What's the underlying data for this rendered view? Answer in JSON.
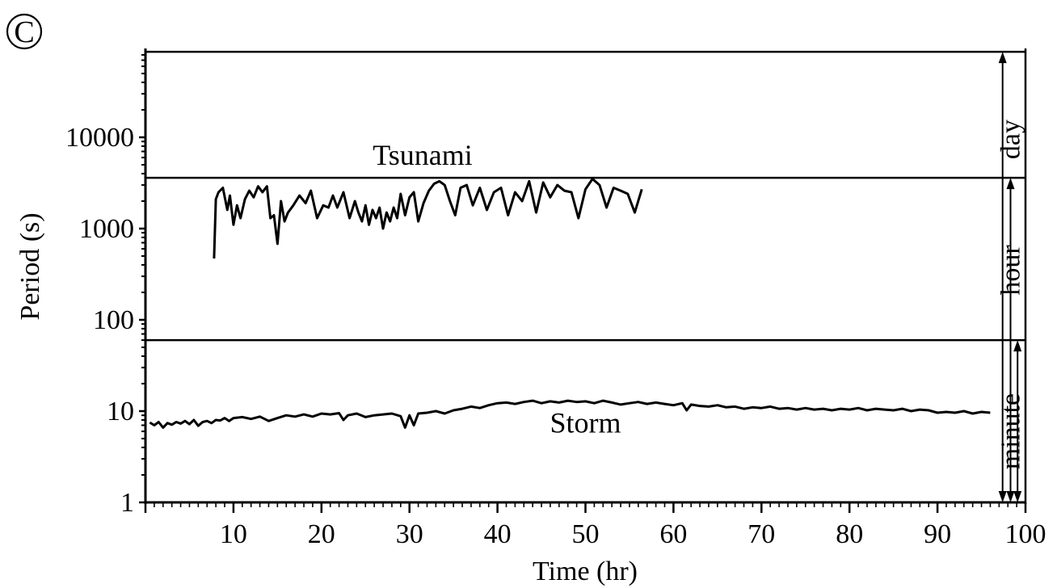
{
  "chart_data": {
    "type": "line",
    "panel_label": "C",
    "xlabel": "Time (hr)",
    "ylabel": "Period (s)",
    "xlim": [
      0,
      100
    ],
    "ylim": [
      1,
      86400
    ],
    "y_scale": "log",
    "x_tick_values": [
      10,
      20,
      30,
      40,
      50,
      60,
      70,
      80,
      90,
      100
    ],
    "x_tick_labels": [
      "10",
      "20",
      "30",
      "40",
      "50",
      "60",
      "70",
      "80",
      "90",
      "100"
    ],
    "y_tick_values": [
      1,
      10,
      100,
      1000,
      10000
    ],
    "y_tick_labels": [
      "1",
      "10",
      "100",
      "1000",
      "10000"
    ],
    "grid": false,
    "legend": "none",
    "series": [
      {
        "name": "Tsunami",
        "x": [
          7.8,
          8.0,
          8.3,
          8.8,
          9.3,
          9.6,
          10.0,
          10.4,
          10.8,
          11.3,
          11.8,
          12.3,
          12.8,
          13.3,
          13.8,
          14.2,
          14.6,
          15.0,
          15.4,
          15.8,
          16.2,
          16.8,
          17.5,
          18.2,
          18.8,
          19.5,
          20.2,
          20.8,
          21.3,
          21.8,
          22.5,
          23.2,
          23.8,
          24.2,
          24.6,
          25.0,
          25.4,
          25.8,
          26.2,
          26.6,
          27.0,
          27.4,
          27.8,
          28.2,
          28.6,
          29.0,
          29.5,
          30.0,
          30.5,
          31.0,
          31.6,
          32.2,
          32.8,
          33.4,
          34.0,
          34.6,
          35.2,
          35.8,
          36.5,
          37.2,
          38.0,
          38.8,
          39.6,
          40.4,
          41.2,
          42.0,
          42.8,
          43.6,
          44.4,
          45.2,
          46.0,
          46.8,
          47.6,
          48.4,
          49.2,
          50.0,
          50.8,
          51.6,
          52.4,
          53.2,
          54.0,
          54.8,
          55.6,
          56.4
        ],
        "y": [
          470,
          2100,
          2500,
          2800,
          1600,
          2300,
          1100,
          1800,
          1300,
          2100,
          2600,
          2200,
          2900,
          2500,
          2900,
          1300,
          1400,
          680,
          2000,
          1200,
          1500,
          1800,
          2300,
          1900,
          2600,
          1300,
          1800,
          1700,
          2300,
          1700,
          2500,
          1300,
          2000,
          1500,
          1200,
          1800,
          1100,
          1600,
          1300,
          1700,
          1000,
          1500,
          1200,
          1700,
          1300,
          2400,
          1400,
          2200,
          2500,
          1200,
          1900,
          2600,
          3100,
          3300,
          3000,
          2000,
          1400,
          2800,
          3000,
          1800,
          2800,
          1600,
          2500,
          2800,
          1400,
          2500,
          2000,
          3300,
          1500,
          3200,
          2200,
          3000,
          2600,
          2500,
          1300,
          2700,
          3500,
          3000,
          1700,
          2800,
          2600,
          2400,
          1500,
          2700
        ]
      },
      {
        "name": "Storm",
        "x": [
          0.5,
          1.0,
          1.5,
          2.0,
          2.5,
          3.0,
          3.5,
          4.0,
          4.5,
          5.0,
          5.5,
          6.0,
          6.5,
          7.0,
          7.5,
          8.0,
          8.5,
          9.0,
          9.5,
          10.0,
          11.0,
          12.0,
          13.0,
          14.0,
          15.0,
          16.0,
          17.0,
          18.0,
          19.0,
          20.0,
          21.0,
          22.0,
          22.5,
          23.0,
          24.0,
          25.0,
          26.0,
          27.0,
          28.0,
          29.0,
          29.5,
          30.0,
          30.5,
          31.0,
          32.0,
          33.0,
          34.0,
          35.0,
          36.0,
          37.0,
          38.0,
          39.0,
          40.0,
          41.0,
          42.0,
          43.0,
          44.0,
          45.0,
          46.0,
          47.0,
          48.0,
          49.0,
          50.0,
          51.0,
          52.0,
          53.0,
          54.0,
          55.0,
          56.0,
          57.0,
          58.0,
          59.0,
          60.0,
          61.0,
          61.5,
          62.0,
          63.0,
          64.0,
          65.0,
          66.0,
          67.0,
          68.0,
          69.0,
          70.0,
          71.0,
          72.0,
          73.0,
          74.0,
          75.0,
          76.0,
          77.0,
          78.0,
          79.0,
          80.0,
          81.0,
          82.0,
          83.0,
          84.0,
          85.0,
          86.0,
          87.0,
          88.0,
          89.0,
          90.0,
          91.0,
          92.0,
          93.0,
          94.0,
          95.0,
          96.0
        ],
        "y": [
          7.5,
          7.0,
          7.6,
          6.6,
          7.4,
          7.1,
          7.6,
          7.3,
          7.8,
          7.2,
          8.0,
          6.9,
          7.6,
          7.8,
          7.4,
          8.0,
          7.9,
          8.4,
          7.8,
          8.4,
          8.6,
          8.2,
          8.7,
          7.8,
          8.4,
          9.0,
          8.7,
          9.2,
          8.7,
          9.4,
          9.2,
          9.5,
          8.0,
          9.0,
          9.4,
          8.6,
          9.0,
          9.2,
          9.4,
          8.8,
          6.6,
          9.0,
          7.0,
          9.4,
          9.6,
          10.0,
          9.4,
          10.2,
          10.6,
          11.2,
          10.8,
          11.6,
          12.2,
          12.4,
          12.0,
          12.6,
          13.0,
          12.2,
          12.8,
          12.4,
          13.0,
          12.6,
          12.8,
          12.2,
          13.0,
          12.4,
          11.8,
          12.2,
          12.6,
          12.0,
          12.4,
          12.0,
          11.6,
          12.2,
          10.2,
          11.8,
          11.4,
          11.2,
          11.6,
          11.0,
          11.2,
          10.6,
          11.0,
          10.8,
          11.2,
          10.6,
          10.8,
          10.4,
          10.8,
          10.4,
          10.6,
          10.2,
          10.6,
          10.4,
          10.8,
          10.2,
          10.6,
          10.4,
          10.2,
          10.6,
          10.0,
          10.4,
          10.2,
          9.6,
          9.8,
          9.6,
          10.0,
          9.4,
          9.8,
          9.6
        ]
      }
    ],
    "series_labels": [
      {
        "text": "Tsunami",
        "x": 31.5,
        "y": 5000
      },
      {
        "text": "Storm",
        "x": 50.0,
        "y": 5.8
      }
    ],
    "threshold_lines": [
      {
        "y": 86400
      },
      {
        "y": 3600
      },
      {
        "y": 60
      }
    ],
    "bands": [
      {
        "label": "day",
        "from": 1,
        "to": 86400,
        "arrow_x": 97.4,
        "label_x": 99.3,
        "label_y": 9500
      },
      {
        "label": "hour",
        "from": 1,
        "to": 3600,
        "arrow_x": 98.3,
        "label_x": 99.3,
        "label_y": 350
      },
      {
        "label": "minute",
        "from": 1,
        "to": 60,
        "arrow_x": 99.1,
        "label_x": 99.3,
        "label_y": 6
      }
    ]
  }
}
